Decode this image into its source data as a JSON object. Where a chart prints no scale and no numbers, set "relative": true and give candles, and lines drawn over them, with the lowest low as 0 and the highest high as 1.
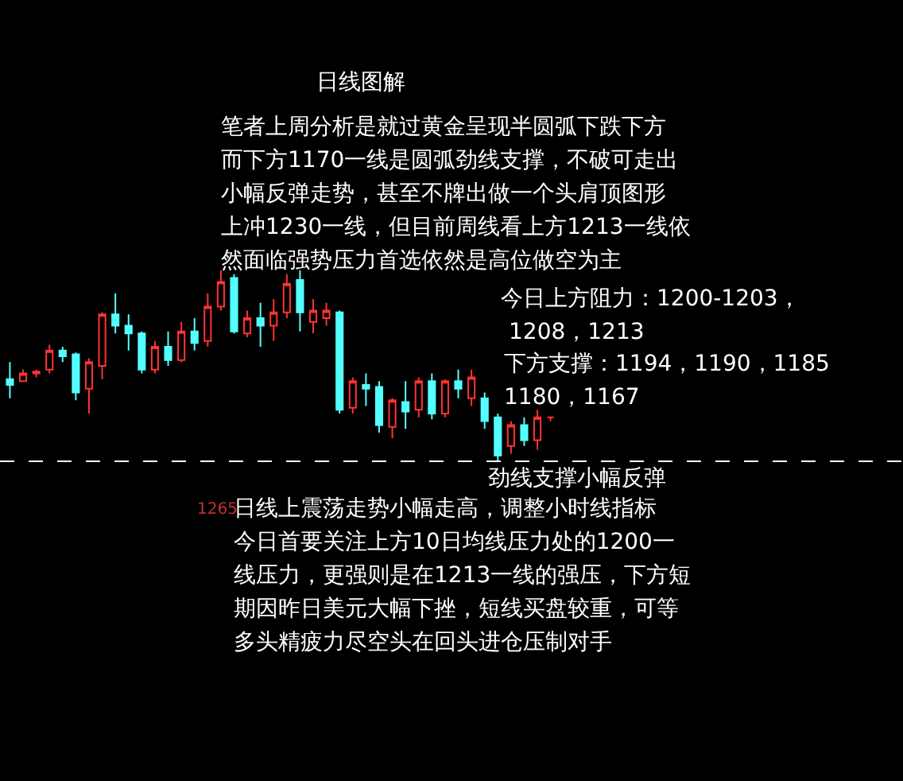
{
  "chart_data": {
    "type": "candlestick",
    "relative": true,
    "categories": [
      null,
      null,
      null,
      null,
      null,
      null,
      null,
      null,
      null,
      null,
      null,
      null,
      null,
      null,
      null,
      null,
      null,
      null,
      null,
      null,
      null,
      null,
      null,
      null,
      null,
      null,
      null,
      null,
      null,
      null,
      null,
      null,
      null,
      null,
      null,
      null,
      null,
      null,
      null,
      null,
      null,
      null
    ],
    "ohlc": [
      [
        0.43,
        0.52,
        0.33,
        0.4
      ],
      [
        0.42,
        0.48,
        0.42,
        0.46
      ],
      [
        0.46,
        0.48,
        0.44,
        0.47
      ],
      [
        0.48,
        0.61,
        0.46,
        0.58
      ],
      [
        0.58,
        0.6,
        0.52,
        0.55
      ],
      [
        0.56,
        0.57,
        0.32,
        0.36
      ],
      [
        0.38,
        0.54,
        0.25,
        0.52
      ],
      [
        0.5,
        0.78,
        0.43,
        0.77
      ],
      [
        0.77,
        0.88,
        0.67,
        0.71
      ],
      [
        0.71,
        0.77,
        0.58,
        0.67
      ],
      [
        0.67,
        0.68,
        0.46,
        0.48
      ],
      [
        0.48,
        0.63,
        0.46,
        0.6
      ],
      [
        0.6,
        0.68,
        0.5,
        0.53
      ],
      [
        0.53,
        0.73,
        0.52,
        0.68
      ],
      [
        0.68,
        0.75,
        0.58,
        0.62
      ],
      [
        0.63,
        0.88,
        0.6,
        0.81
      ],
      [
        0.81,
        1,
        0.79,
        0.94
      ],
      [
        0.96,
        0.98,
        0.67,
        0.68
      ],
      [
        0.67,
        0.79,
        0.65,
        0.75
      ],
      [
        0.75,
        0.83,
        0.6,
        0.71
      ],
      [
        0.71,
        0.85,
        0.63,
        0.78
      ],
      [
        0.78,
        0.98,
        0.75,
        0.93
      ],
      [
        0.95,
        1,
        0.68,
        0.78
      ],
      [
        0.73,
        0.85,
        0.67,
        0.79
      ],
      [
        0.75,
        0.83,
        0.71,
        0.79
      ],
      [
        0.78,
        0.79,
        0.25,
        0.27
      ],
      [
        0.28,
        0.44,
        0.25,
        0.42
      ],
      [
        0.4,
        0.46,
        0.29,
        0.38
      ],
      [
        0.39,
        0.42,
        0.15,
        0.19
      ],
      [
        0.18,
        0.33,
        0.12,
        0.32
      ],
      [
        0.31,
        0.42,
        0.17,
        0.26
      ],
      [
        0.27,
        0.44,
        0.23,
        0.42
      ],
      [
        0.42,
        0.46,
        0.22,
        0.25
      ],
      [
        0.25,
        0.43,
        0.23,
        0.42
      ],
      [
        0.42,
        0.48,
        0.33,
        0.38
      ],
      [
        0.33,
        0.48,
        0.29,
        0.44
      ],
      [
        0.33,
        0.36,
        0.17,
        0.21
      ],
      [
        0.23,
        0.25,
        0,
        0.03
      ],
      [
        0.08,
        0.21,
        0.04,
        0.19
      ],
      [
        0.19,
        0.23,
        0.08,
        0.11
      ],
      [
        0.11,
        0.27,
        0.06,
        0.23
      ],
      [
        0.23,
        0.23,
        0.21,
        0.23
      ]
    ],
    "ref_lines": [
      {
        "axis": "y",
        "value": 0,
        "color": "#ffffff",
        "line_style": "dashed"
      }
    ],
    "annotations": [
      "日线图解",
      "笔者上周分析是就过黄金呈现半圆弧下跌下方",
      "而下方1170一线是圆弧劲线支撑，不破可走出",
      "小幅反弹走势，甚至不牌出做一个头肩顶图形",
      "上冲1230一线，但目前周线看上方1213一线依",
      "然面临强势压力首选依然是高位做空为主",
      "今日上方阻力：1200-1203，",
      "1208，1213",
      "下方支撑：1194，1190，1185",
      "1180，1167",
      "劲线支撑小幅反弹",
      "1265",
      "日线上震荡走势小幅走高，调整小时线指标",
      "今日首要关注上方10日均线压力处的1200一",
      "线压力，更强则是在1213一线的强压，下方短",
      "期因昨日美元大幅下挫，短线买盘较重，可等",
      "多头精疲力尽空头在回头进仓压制对手"
    ]
  }
}
